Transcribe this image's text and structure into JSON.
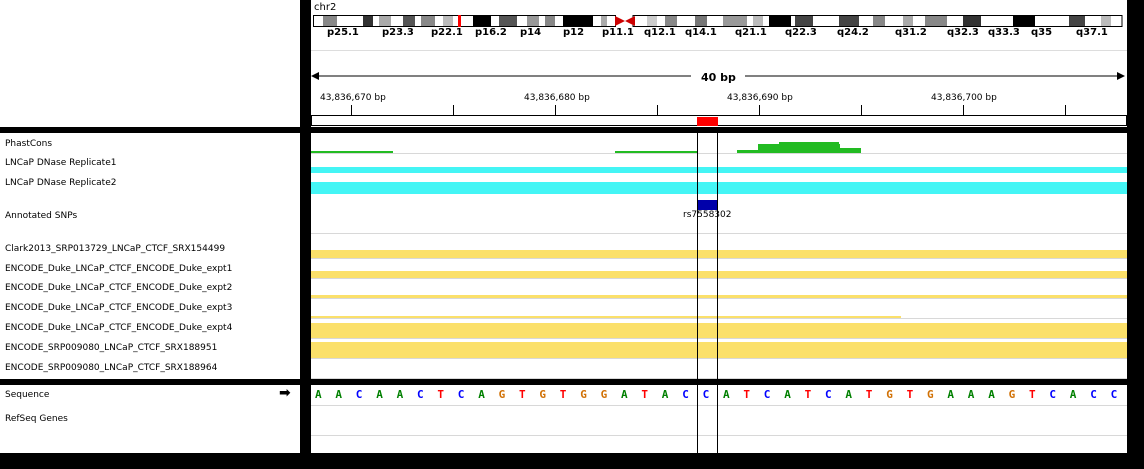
{
  "header": {
    "chromosome": "chr2",
    "bands": [
      "p25.1",
      "p23.3",
      "p22.1",
      "p16.2",
      "p14",
      "p12",
      "p11.1",
      "q12.1",
      "q14.1",
      "q21.1",
      "q22.3",
      "q24.2",
      "q31.2",
      "q32.3",
      "q33.3",
      "q35",
      "q37.1"
    ],
    "span_label": "40 bp",
    "ticks": [
      "43,836,670 bp",
      "43,836,680 bp",
      "43,836,690 bp",
      "43,836,700 bp"
    ]
  },
  "tracks": {
    "data": [
      "PhastCons",
      "LNCaP DNase Replicate1",
      "LNCaP DNase Replicate2",
      "Annotated SNPs",
      "Clark2013_SRP013729_LNCaP_CTCF_SRX154499",
      "ENCODE_Duke_LNCaP_CTCF_ENCODE_Duke_expt1",
      "ENCODE_Duke_LNCaP_CTCF_ENCODE_Duke_expt2",
      "ENCODE_Duke_LNCaP_CTCF_ENCODE_Duke_expt3",
      "ENCODE_Duke_LNCaP_CTCF_ENCODE_Duke_expt4",
      "ENCODE_SRP009080_LNCaP_CTCF_SRX188951",
      "ENCODE_SRP009080_LNCaP_CTCF_SRX188964"
    ],
    "feature": [
      "Sequence",
      "RefSeq Genes"
    ]
  },
  "snp": {
    "id": "rs7558302"
  },
  "sequence": {
    "bases": [
      "A",
      "A",
      "C",
      "A",
      "A",
      "C",
      "T",
      "C",
      "A",
      "G",
      "T",
      "G",
      "T",
      "G",
      "G",
      "A",
      "T",
      "A",
      "C",
      "C",
      "A",
      "T",
      "C",
      "A",
      "T",
      "C",
      "A",
      "T",
      "G",
      "T",
      "G",
      "A",
      "A",
      "A",
      "G",
      "T",
      "C",
      "A",
      "C",
      "C"
    ],
    "colors": {
      "A": "#008000",
      "C": "#0000ff",
      "G": "#d17105",
      "T": "#ff0000"
    }
  },
  "colors": {
    "phastcons": "#22bb22",
    "dnase": "#44f5f5",
    "chip": "#fbe06a",
    "snp": "#0000aa",
    "highlight": "#ff0000"
  }
}
